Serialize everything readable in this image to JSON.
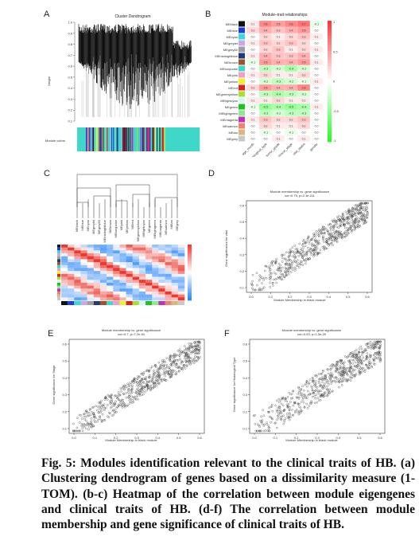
{
  "panels": {
    "A": {
      "label": "A",
      "title": "Cluster Dendrogram",
      "ylabel": "Height",
      "colors_label": "Module colors",
      "yticks": [
        "1.0",
        "0.9",
        "0.8",
        "0.7",
        "0.6",
        "0.5",
        "0.4",
        "0.3",
        "0.2",
        "0.1"
      ]
    },
    "B": {
      "label": "B",
      "title": "Module–trait relationships",
      "modules": [
        "MEblack",
        "MEblue",
        "MEcyan",
        "MEgreylet",
        "MEgrey60",
        "MEmidnightblue",
        "MEbrown",
        "MEturquoise",
        "MEpink",
        "MEyellow",
        "MEred",
        "MEgreenyellow",
        "MElightcyan",
        "MEgreen",
        "MElightgreen",
        "MEmagenta",
        "MEsalmon",
        "MEtan",
        "MEgrey"
      ],
      "module_colors": [
        "#111111",
        "#1f3fd8",
        "#3fd8d8",
        "#c8a8e8",
        "#a0a0a0",
        "#203a80",
        "#a0522d",
        "#3fd8c8",
        "#f0a0c8",
        "#f0f030",
        "#e02020",
        "#a8e030",
        "#d8f8f8",
        "#20c020",
        "#90e890",
        "#c030c0",
        "#f08070",
        "#d8b880",
        "#c8c8c8"
      ],
      "traits": [
        "age_month",
        "histological_type",
        "tumor_grade",
        "clinical_stage",
        "vital_status",
        "gender"
      ],
      "legend_ticks": [
        "1",
        "0.5",
        "0",
        "-0.5",
        "-1"
      ]
    },
    "C": {
      "label": "C"
    },
    "D": {
      "label": "D",
      "title": "Module membership vs. gene significance",
      "subtitle": "cor=0.75, p=2.1e-111",
      "xlabel": "Module Membership in black module",
      "ylabel": "Gene significance for vital",
      "xticks": [
        "0.0",
        "0.1",
        "0.2",
        "0.3",
        "0.4",
        "0.5",
        "0.6"
      ]
    },
    "E": {
      "label": "E",
      "title": "Module membership vs. gene significance",
      "subtitle": "cor=0.7, p=7.2e-94",
      "xlabel": "Module Membership in black module",
      "ylabel": "Gene significance for Stage",
      "xticks": [
        "0.0",
        "0.1",
        "0.2",
        "0.3",
        "0.4",
        "0.5",
        "0.6"
      ]
    },
    "F": {
      "label": "F",
      "title": "Module membership vs. gene significance",
      "subtitle": "cor=0.63, p=1.3e-29",
      "xlabel": "Module Membership in black module",
      "ylabel": "Gene significance for Histological Type",
      "xticks": [
        "0.0",
        "0.1",
        "0.2",
        "0.3",
        "0.4",
        "0.5",
        "0.6"
      ]
    }
  },
  "caption": {
    "line": "Fig. 5: Modules identification relevant to the clinical traits of HB. (a) Clustering dendrogram of genes based on a dissimilarity measure (1-TOM). (b-c) Heatmap of the correlation between module eigengenes and clinical traits of HB. (d-f) The correlation between module membership and gene significance of clinical traits of HB."
  }
}
